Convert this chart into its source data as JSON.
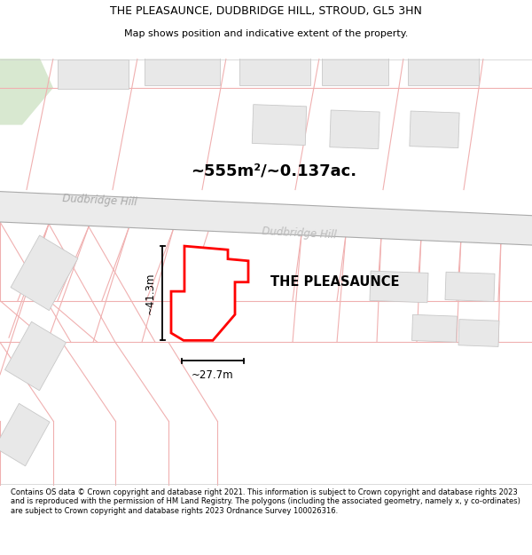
{
  "title_line1": "THE PLEASAUNCE, DUDBRIDGE HILL, STROUD, GL5 3HN",
  "title_line2": "Map shows position and indicative extent of the property.",
  "property_label": "THE PLEASAUNCE",
  "area_label": "~555m²/~0.137ac.",
  "dim_vertical": "~41.3m",
  "dim_horizontal": "~27.7m",
  "road_label1": "Dudbridge Hill",
  "road_label2": "Dudbridge Hill",
  "footer_text": "Contains OS data © Crown copyright and database right 2021. This information is subject to Crown copyright and database rights 2023 and is reproduced with the permission of HM Land Registry. The polygons (including the associated geometry, namely x, y co-ordinates) are subject to Crown copyright and database rights 2023 Ordnance Survey 100026316.",
  "bg_color": "#ffffff",
  "map_bg_color": "#ffffff",
  "highlight_edge": "#ff0000",
  "highlight_fill": "#ffffff",
  "building_fill": "#e8e8e8",
  "building_edge": "#c8c8c8",
  "road_fill": "#ebebeb",
  "road_edge": "#aaaaaa",
  "lot_line_color": "#f0b0b0",
  "green_color": "#d8e8d0"
}
